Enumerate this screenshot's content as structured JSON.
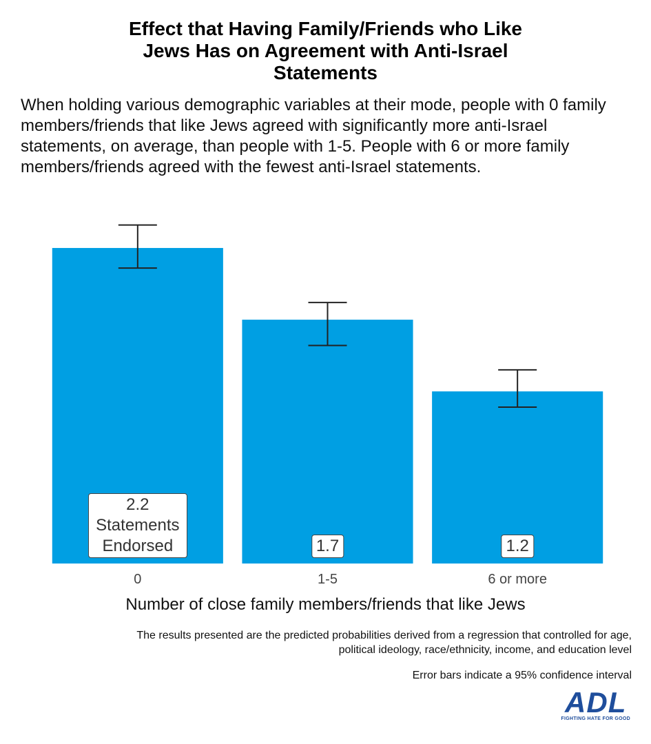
{
  "chart_data": {
    "type": "bar",
    "title": "Effect that Having Family/Friends who Like Jews Has on Agreement with Anti-Israel Statements",
    "subtitle": "When holding various demographic variables at their mode, people with 0 family members/friends that like Jews agreed with significantly more anti-Israel statements, on average, than people with 1-5. People with 6 or more family members/friends agreed with the fewest anti-Israel statements.",
    "categories": [
      "0",
      "1-5",
      "6 or more"
    ],
    "values": [
      2.2,
      1.7,
      1.2
    ],
    "value_labels": [
      "2.2 Statements Endorsed",
      "1.7",
      "1.2"
    ],
    "error_bounds": [
      [
        2.06,
        2.36
      ],
      [
        1.52,
        1.82
      ],
      [
        1.09,
        1.35
      ]
    ],
    "color": "#009fe3",
    "ylim": [
      0,
      2.5
    ],
    "xlabel": "Number of close family members/friends that like Jews",
    "notes": [
      "The results presented are the predicted probabilities derived from a regression that controlled for age, political ideology, race/ethnicity, income, and education level",
      "Error bars indicate a 95% confidence interval"
    ]
  },
  "logo": {
    "text": "ADL",
    "tagline": "FIGHTING HATE FOR GOOD"
  }
}
